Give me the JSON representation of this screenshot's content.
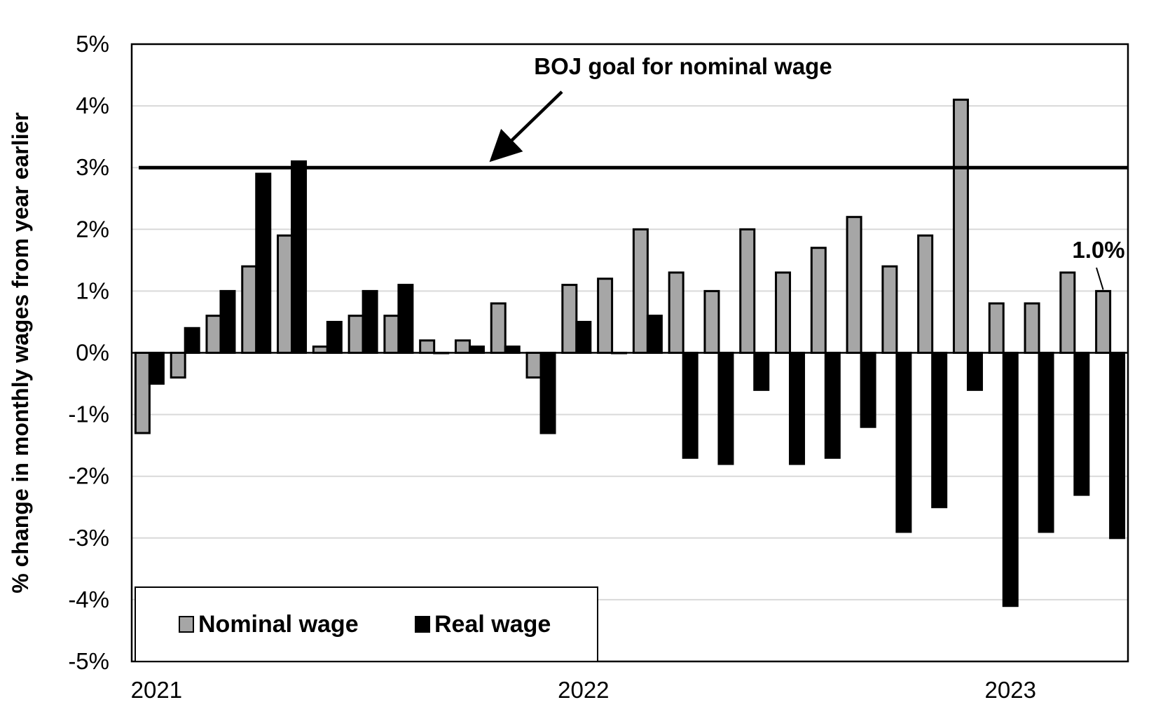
{
  "chart_data": {
    "type": "bar",
    "ylabel": "% change in monthly wages from year earlier",
    "ylim": [
      -5,
      5
    ],
    "y_ticks": [
      {
        "value": 5,
        "label": "5%"
      },
      {
        "value": 4,
        "label": "4%"
      },
      {
        "value": 3,
        "label": "3%"
      },
      {
        "value": 2,
        "label": "2%"
      },
      {
        "value": 1,
        "label": "1%"
      },
      {
        "value": 0,
        "label": "0%"
      },
      {
        "value": -1,
        "label": "-1%"
      },
      {
        "value": -2,
        "label": "-2%"
      },
      {
        "value": -3,
        "label": "-3%"
      },
      {
        "value": -4,
        "label": "-4%"
      },
      {
        "value": -5,
        "label": "-5%"
      }
    ],
    "x_ticks": [
      {
        "category": "2021-01",
        "label": "2021"
      },
      {
        "category": "2022-01",
        "label": "2022"
      },
      {
        "category": "2023-01",
        "label": "2023"
      }
    ],
    "categories": [
      "2021-01",
      "2021-02",
      "2021-03",
      "2021-04",
      "2021-05",
      "2021-06",
      "2021-07",
      "2021-08",
      "2021-09",
      "2021-10",
      "2021-11",
      "2021-12",
      "2022-01",
      "2022-02",
      "2022-03",
      "2022-04",
      "2022-05",
      "2022-06",
      "2022-07",
      "2022-08",
      "2022-09",
      "2022-10",
      "2022-11",
      "2022-12",
      "2023-01",
      "2023-02",
      "2023-03",
      "2023-04"
    ],
    "series": [
      {
        "name": "Nominal wage",
        "color": "#a6a6a6",
        "values": [
          -1.3,
          -0.4,
          0.6,
          1.4,
          1.9,
          0.1,
          0.6,
          0.6,
          0.2,
          0.2,
          0.8,
          -0.4,
          1.1,
          1.2,
          2.0,
          1.3,
          1.0,
          2.0,
          1.3,
          1.7,
          2.2,
          1.4,
          1.9,
          4.1,
          0.8,
          0.8,
          1.3,
          1.0
        ]
      },
      {
        "name": "Real wage",
        "color": "#000000",
        "values": [
          -0.5,
          0.4,
          1.0,
          2.9,
          3.1,
          0.5,
          1.0,
          1.1,
          0.0,
          0.1,
          0.1,
          -1.3,
          0.5,
          0.0,
          0.6,
          -1.7,
          -1.8,
          -0.6,
          -1.8,
          -1.7,
          -1.2,
          -2.9,
          -2.5,
          -0.6,
          -4.1,
          -2.9,
          -2.3,
          -3.0
        ]
      }
    ],
    "reference_line": {
      "value": 3.0,
      "label": "BOJ goal for nominal wage"
    },
    "callout": {
      "series": "Nominal wage",
      "category": "2023-04",
      "label": "1.0%"
    },
    "grid": true,
    "legend": "bottom-left"
  }
}
